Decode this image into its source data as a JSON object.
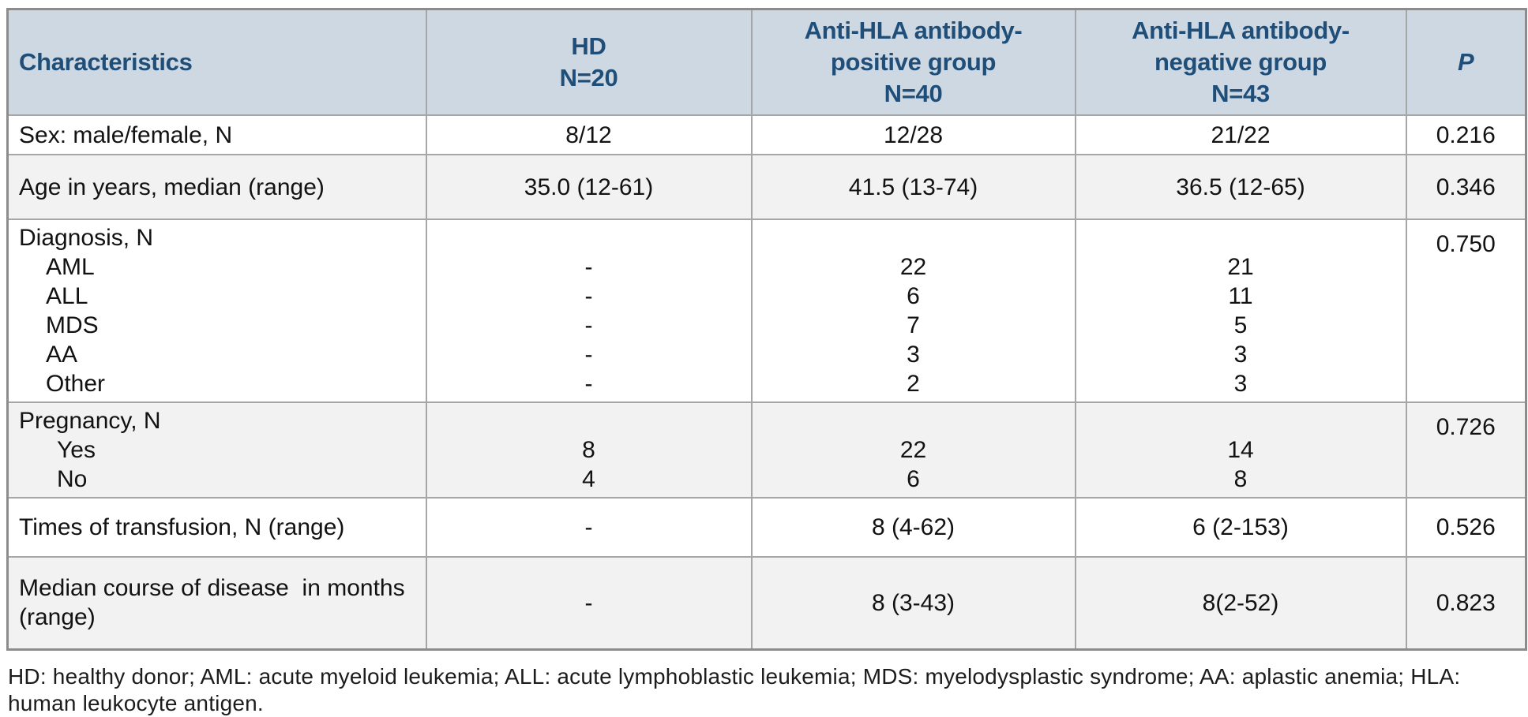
{
  "table": {
    "columns": [
      {
        "id": "characteristic",
        "label": "Characteristics"
      },
      {
        "id": "hd",
        "label": "HD\nN=20"
      },
      {
        "id": "positive",
        "label": "Anti-HLA antibody-\npositive group\nN=40"
      },
      {
        "id": "negative",
        "label": "Anti-HLA antibody-\nnegative group\nN=43"
      },
      {
        "id": "p",
        "label": "P"
      }
    ],
    "rows": [
      {
        "name": "sex",
        "p_align_top": false,
        "cells": {
          "characteristic": [
            "Sex: male/female, N"
          ],
          "hd": [
            "8/12"
          ],
          "positive": [
            "12/28"
          ],
          "negative": [
            "21/22"
          ],
          "p": [
            "0.216"
          ]
        }
      },
      {
        "name": "age",
        "p_align_top": false,
        "cells": {
          "characteristic": [
            "Age in years, median (range)"
          ],
          "hd": [
            "35.0 (12-61)"
          ],
          "positive": [
            "41.5 (13-74)"
          ],
          "negative": [
            "36.5 (12-65)"
          ],
          "p": [
            "0.346"
          ]
        }
      },
      {
        "name": "diagnosis",
        "p_align_top": true,
        "cells": {
          "characteristic": [
            "Diagnosis, N",
            {
              "text": "AML",
              "indent": 1
            },
            {
              "text": "ALL",
              "indent": 1
            },
            {
              "text": "MDS",
              "indent": 1
            },
            {
              "text": "AA",
              "indent": 1
            },
            {
              "text": "Other",
              "indent": 1
            }
          ],
          "hd": [
            "",
            "-",
            "-",
            "-",
            "-",
            "-"
          ],
          "positive": [
            "",
            "22",
            "6",
            "7",
            "3",
            "2"
          ],
          "negative": [
            "",
            "21",
            "11",
            "5",
            "3",
            "3"
          ],
          "p": [
            "0.750"
          ]
        }
      },
      {
        "name": "pregnancy",
        "p_align_top": true,
        "cells": {
          "characteristic": [
            "Pregnancy, N",
            {
              "text": "Yes",
              "indent": 2
            },
            {
              "text": "No",
              "indent": 2
            }
          ],
          "hd": [
            "",
            "8",
            "4"
          ],
          "positive": [
            "",
            "22",
            "6"
          ],
          "negative": [
            "",
            "14",
            "8"
          ],
          "p": [
            "0.726"
          ]
        }
      },
      {
        "name": "transfusion",
        "p_align_top": false,
        "cells": {
          "characteristic": [
            "Times of transfusion, N (range)"
          ],
          "hd": [
            "-"
          ],
          "positive": [
            "8 (4-62)"
          ],
          "negative": [
            "6 (2-153)"
          ],
          "p": [
            "0.526"
          ]
        }
      },
      {
        "name": "course",
        "p_align_top": false,
        "cells": {
          "characteristic": [
            "Median course of disease  in months",
            "(range)"
          ],
          "hd": [
            "-"
          ],
          "positive": [
            "8 (3-43)"
          ],
          "negative": [
            "8(2-52)"
          ],
          "p": [
            "0.823"
          ]
        }
      }
    ]
  },
  "footnote": "HD: healthy donor; AML: acute myeloid leukemia; ALL: acute lymphoblastic leukemia; MDS: myelodysplastic syndrome; AA: aplastic anemia; HLA: human leukocyte antigen."
}
